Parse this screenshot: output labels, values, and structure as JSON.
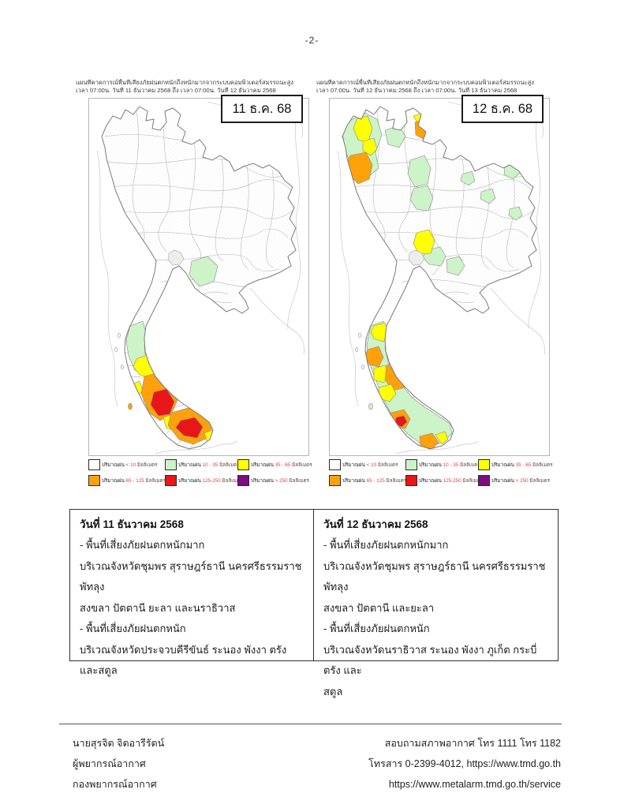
{
  "page_number": "-2-",
  "colors": {
    "none": "#ffffff",
    "light": "#cdf3c8",
    "moderate": "#ffff00",
    "heavy": "#ffa10a",
    "very_heavy": "#e81717",
    "extreme": "#7d0c7d"
  },
  "maps": [
    {
      "caption_line1": "แผนที่คาดการณ์พื้นที่เสี่ยงภัยฝนตกหนักถึงหนักมากจากระบบคอมพิวเตอร์สมรรถนะสูง",
      "caption_line2": "เวลา 07:00น. วันที่ 11 ธันวาคม 2568 ถึง เวลา 07:00น. วันที่ 12 ธันวาคม 2568",
      "date_label": "11 ธ.ค. 68"
    },
    {
      "caption_line1": "แผนที่คาดการณ์พื้นที่เสี่ยงภัยฝนตกหนักถึงหนักมากจากระบบคอมพิวเตอร์สมรรถนะสูง",
      "caption_line2": "เวลา 07:00น. วันที่ 12 ธันวาคม 2568 ถึง เวลา 07:00น. วันที่ 13 ธันวาคม 2568",
      "date_label": "12 ธ.ค. 68"
    }
  ],
  "legend": {
    "prefix": "ปริมาณฝน",
    "items": [
      {
        "range": "< 10",
        "unit": "มิลลิเมตร"
      },
      {
        "range": "10 - 35",
        "unit": "มิลลิเมตร"
      },
      {
        "range": "35 - 65",
        "unit": "มิลลิเมตร"
      },
      {
        "range": "65 - 125",
        "unit": "มิลลิเมตร"
      },
      {
        "range": "125-250",
        "unit": "มิลลิเมตร"
      },
      {
        "range": "> 250",
        "unit": "มิลลิเมตร"
      }
    ]
  },
  "table": {
    "columns": [
      {
        "title": "วันที่ 11 ธันวาคม 2568",
        "lines": [
          "- พื้นที่เสี่ยงภัยฝนตกหนักมาก",
          "บริเวณจังหวัดชุมพร สุราษฎร์ธานี นครศรีธรรมราช พัทลุง",
          "สงขลา ปัตตานี ยะลา และนราธิวาส",
          "- พื้นที่เสี่ยงภัยฝนตกหนัก",
          "บริเวณจังหวัดประจวบคีรีขันธ์ ระนอง พังงา ตรัง และสตูล"
        ]
      },
      {
        "title": "วันที่ 12 ธันวาคม 2568",
        "lines": [
          "- พื้นที่เสี่ยงภัยฝนตกหนักมาก",
          "บริเวณจังหวัดชุมพร สุราษฎร์ธานี นครศรีธรรมราช พัทลุง",
          "สงขลา ปัตตานี และยะลา",
          "- พื้นที่เสี่ยงภัยฝนตกหนัก",
          "บริเวณจังหวัดนราธิวาส ระนอง พังงา ภูเก็ต กระบี่ ตรัง และ",
          "สตูล"
        ]
      }
    ]
  },
  "footer": {
    "left": [
      "นายสุรจิต จิตอารีรัตน์",
      "ผู้พยากรณ์อากาศ",
      "กองพยากรณ์อากาศ"
    ],
    "right": [
      "สอบถามสภาพอากาศ โทร 1111 โทร 1182",
      "โทรสาร 0-2399-4012, https://www.tmd.go.th",
      "https://www.metalarm.tmd.go.th/service"
    ]
  }
}
